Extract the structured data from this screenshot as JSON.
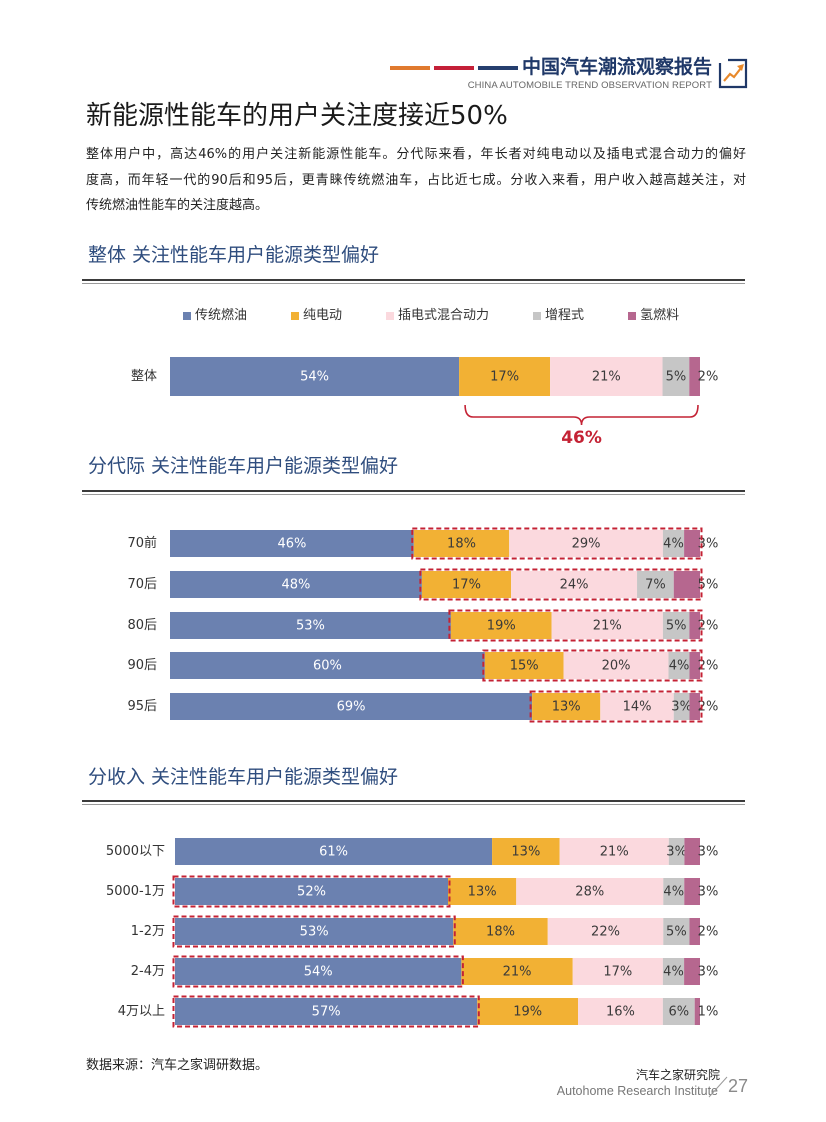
{
  "header": {
    "title_cn": "中国汽车潮流观察报告",
    "title_en": "CHINA AUTOMOBILE TREND OBSERVATION REPORT",
    "stripe_colors": [
      "#e07a2e",
      "#c42038",
      "#253e6e"
    ],
    "icon": "trend-chart-icon"
  },
  "page_title": "新能源性能车的用户关注度接近50%",
  "intro_lines": [
    "整体用户中，高达46%的用户关注新能源性能车。分代际来看，年长者对纯电动以及插电式混合动力的偏好",
    "度高，而年轻一代的90后和95后，更青睐传统燃油车，占比近七成。分收入来看，用户收入越高越关注，对",
    "传统燃油性能车的关注度越高。"
  ],
  "colors": {
    "accent_red": "#c42234"
  },
  "chart_data": [
    {
      "type": "bar",
      "orientation": "horizontal",
      "stacked": true,
      "title": "整体 关注性能车用户能源类型偏好",
      "unit": "%",
      "legend": {
        "position": "top"
      },
      "categories": [
        "整体"
      ],
      "series": [
        {
          "name": "传统燃油",
          "color": "#6b81b0",
          "values": [
            54
          ]
        },
        {
          "name": "纯电动",
          "color": "#f2b134",
          "values": [
            17
          ]
        },
        {
          "name": "插电式混合动力",
          "color": "#fbd9de",
          "values": [
            21
          ]
        },
        {
          "name": "增程式",
          "color": "#c6c6c6",
          "values": [
            5
          ]
        },
        {
          "name": "氢燃料",
          "color": "#b6678f",
          "values": [
            2
          ]
        }
      ],
      "annotation": {
        "text": "46%",
        "series": [
          "纯电动",
          "插电式混合动力",
          "增程式",
          "氢燃料"
        ]
      }
    },
    {
      "type": "bar",
      "orientation": "horizontal",
      "stacked": true,
      "title": "分代际 关注性能车用户能源类型偏好",
      "unit": "%",
      "categories": [
        "70前",
        "70后",
        "80后",
        "90后",
        "95后"
      ],
      "series": [
        {
          "name": "传统燃油",
          "color": "#6b81b0",
          "values": [
            46,
            48,
            53,
            60,
            69
          ]
        },
        {
          "name": "纯电动",
          "color": "#f2b134",
          "values": [
            18,
            17,
            19,
            15,
            13
          ]
        },
        {
          "name": "插电式混合动力",
          "color": "#fbd9de",
          "values": [
            29,
            24,
            21,
            20,
            14
          ]
        },
        {
          "name": "增程式",
          "color": "#c6c6c6",
          "values": [
            4,
            7,
            5,
            4,
            3
          ]
        },
        {
          "name": "氢燃料",
          "color": "#b6678f",
          "values": [
            3,
            5,
            2,
            2,
            2
          ]
        }
      ],
      "highlight": {
        "series": [
          "纯电动",
          "插电式混合动力",
          "增程式",
          "氢燃料"
        ],
        "categories": [
          "70前",
          "70后",
          "80后",
          "90后",
          "95后"
        ]
      }
    },
    {
      "type": "bar",
      "orientation": "horizontal",
      "stacked": true,
      "title": "分收入 关注性能车用户能源类型偏好",
      "unit": "%",
      "categories": [
        "5000以下",
        "5000-1万",
        "1-2万",
        "2-4万",
        "4万以上"
      ],
      "series": [
        {
          "name": "传统燃油",
          "color": "#6b81b0",
          "values": [
            61,
            52,
            53,
            54,
            57
          ]
        },
        {
          "name": "纯电动",
          "color": "#f2b134",
          "values": [
            13,
            13,
            18,
            21,
            19
          ]
        },
        {
          "name": "插电式混合动力",
          "color": "#fbd9de",
          "values": [
            21,
            28,
            22,
            17,
            16
          ]
        },
        {
          "name": "增程式",
          "color": "#c6c6c6",
          "values": [
            3,
            4,
            5,
            4,
            6
          ]
        },
        {
          "name": "氢燃料",
          "color": "#b6678f",
          "values": [
            3,
            3,
            2,
            3,
            1
          ]
        }
      ],
      "highlight": {
        "series": [
          "传统燃油"
        ],
        "categories": [
          "5000-1万",
          "1-2万",
          "2-4万",
          "4万以上"
        ]
      }
    }
  ],
  "footer": {
    "source": "数据来源：汽车之家调研数据。",
    "org_cn": "汽车之家研究院",
    "org_en": "Autohome Research Institute",
    "page_number": "27"
  }
}
